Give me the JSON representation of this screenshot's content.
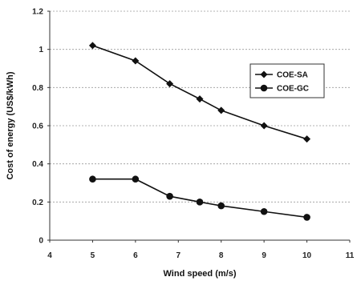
{
  "chart_data": {
    "type": "line",
    "xlabel": "Wind speed (m/s)",
    "ylabel": "Cost of energy (US$/kWh)",
    "xlim": [
      4,
      11
    ],
    "ylim": [
      0,
      1.2
    ],
    "x_ticks": [
      "4",
      "5",
      "6",
      "7",
      "8",
      "9",
      "10",
      "11"
    ],
    "y_ticks": [
      "0",
      "0.2",
      "0.4",
      "0.6",
      "0.8",
      "1",
      "1.2"
    ],
    "grid": true,
    "legend_position": "right",
    "series": [
      {
        "name": "COE-SA",
        "marker": "diamond",
        "x": [
          5,
          6,
          6.8,
          7.5,
          8,
          9,
          10
        ],
        "y": [
          1.02,
          0.94,
          0.82,
          0.74,
          0.68,
          0.6,
          0.53
        ]
      },
      {
        "name": "COE-GC",
        "marker": "circle",
        "x": [
          5,
          6,
          6.8,
          7.5,
          8,
          9,
          10
        ],
        "y": [
          0.32,
          0.32,
          0.23,
          0.2,
          0.18,
          0.15,
          0.12
        ]
      }
    ]
  }
}
